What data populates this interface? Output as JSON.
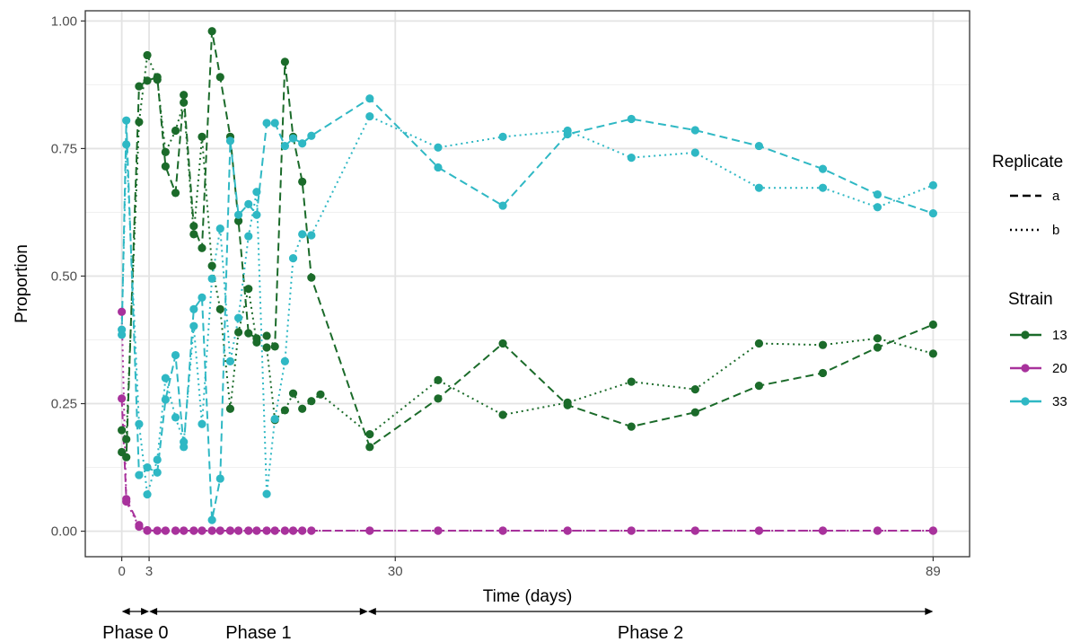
{
  "chart_data": {
    "type": "line",
    "title": "",
    "xlabel": "Time (days)",
    "ylabel": "Proportion",
    "xlim": [
      -4,
      93
    ],
    "ylim": [
      -0.05,
      1.02
    ],
    "x_ticks": [
      0,
      3,
      30,
      89
    ],
    "y_ticks": [
      0.0,
      0.25,
      0.5,
      0.75,
      1.0
    ],
    "y_tick_labels": [
      "0.00",
      "0.25",
      "0.50",
      "0.75",
      "1.00"
    ],
    "grid": true,
    "legend_placement": "right",
    "legend": {
      "replicate_title": "Replicate",
      "replicate_items": [
        {
          "label": "a",
          "linetype": "dashed"
        },
        {
          "label": "b",
          "linetype": "dotted"
        }
      ],
      "strain_title": "Strain",
      "strain_items": [
        {
          "label": "13",
          "color": "#1b6b2a"
        },
        {
          "label": "20",
          "color": "#a8329c"
        },
        {
          "label": "33",
          "color": "#2fb8c4"
        }
      ]
    },
    "phases": [
      {
        "label": "Phase 0",
        "start": 0,
        "end": 3
      },
      {
        "label": "Phase 1",
        "start": 3,
        "end": 27
      },
      {
        "label": "Phase 2",
        "start": 27,
        "end": 89
      }
    ],
    "series": [
      {
        "strain": "13",
        "replicate": "a",
        "color": "#1b6b2a",
        "dash": "dashed",
        "x": [
          0,
          0.5,
          1.9,
          2.8,
          3.9,
          4.8,
          5.9,
          6.8,
          7.9,
          8.8,
          9.9,
          10.8,
          11.9,
          12.8,
          13.9,
          14.8,
          15.9,
          16.8,
          17.9,
          18.8,
          19.8,
          20.8,
          27.2,
          34.7,
          41.8,
          48.9,
          55.9,
          62.9,
          69.9,
          76.9,
          82.9,
          89
        ],
        "y": [
          0.155,
          0.145,
          0.872,
          0.883,
          0.89,
          0.715,
          0.663,
          0.855,
          0.598,
          0.555,
          0.98,
          0.89,
          0.773,
          0.608,
          0.388,
          0.378,
          0.383,
          0.362,
          0.92,
          0.773,
          0.685,
          0.497,
          0.165,
          0.26,
          0.368,
          0.247,
          0.205,
          0.233,
          0.285,
          0.31,
          0.36,
          0.405
        ]
      },
      {
        "strain": "13",
        "replicate": "b",
        "color": "#1b6b2a",
        "dash": "dotted",
        "x": [
          0,
          0.5,
          1.9,
          2.8,
          3.9,
          4.8,
          5.9,
          6.8,
          7.9,
          8.8,
          9.9,
          10.8,
          11.9,
          12.8,
          13.9,
          14.8,
          15.9,
          16.8,
          17.9,
          18.8,
          19.8,
          20.8,
          21.8,
          27.2,
          34.7,
          41.8,
          48.9,
          55.9,
          62.9,
          69.9,
          76.9,
          82.9,
          89
        ],
        "y": [
          0.198,
          0.18,
          0.802,
          0.933,
          0.885,
          0.743,
          0.785,
          0.84,
          0.582,
          0.773,
          0.52,
          0.435,
          0.24,
          0.39,
          0.475,
          0.37,
          0.36,
          0.218,
          0.237,
          0.27,
          0.24,
          0.255,
          0.268,
          0.19,
          0.296,
          0.228,
          0.252,
          0.293,
          0.278,
          0.368,
          0.365,
          0.378,
          0.348
        ]
      },
      {
        "strain": "20",
        "replicate": "a",
        "color": "#a8329c",
        "dash": "dashed",
        "x": [
          0,
          0.5,
          1.9,
          2.8,
          3.9,
          4.8,
          5.9,
          6.8,
          7.9,
          8.8,
          9.9,
          10.8,
          11.9,
          12.8,
          13.9,
          14.8,
          15.9,
          16.8,
          17.9,
          18.8,
          19.8,
          20.8,
          27.2,
          34.7,
          41.8,
          48.9,
          55.9,
          62.9,
          69.9,
          76.9,
          82.9,
          89
        ],
        "y": [
          0.26,
          0.063,
          0.012,
          0.002,
          0.001,
          0.001,
          0.001,
          0.001,
          0.001,
          0.001,
          0.001,
          0.001,
          0.001,
          0.001,
          0.001,
          0.001,
          0.001,
          0.001,
          0.001,
          0.001,
          0.001,
          0.001,
          0.001,
          0.001,
          0.001,
          0.001,
          0.001,
          0.001,
          0.001,
          0.001,
          0.001,
          0.001
        ]
      },
      {
        "strain": "20",
        "replicate": "b",
        "color": "#a8329c",
        "dash": "dotted",
        "x": [
          0,
          0.5,
          1.9,
          2.8,
          3.9,
          4.8,
          5.9,
          6.8,
          7.9,
          8.8,
          9.9,
          10.8,
          11.9,
          12.8,
          13.9,
          14.8,
          15.9,
          16.8,
          17.9,
          18.8,
          19.8,
          20.8,
          27.2,
          34.7,
          41.8,
          48.9,
          55.9,
          62.9,
          69.9,
          76.9,
          82.9,
          89
        ],
        "y": [
          0.43,
          0.058,
          0.009,
          0.001,
          0.001,
          0.001,
          0.001,
          0.001,
          0.001,
          0.001,
          0.001,
          0.001,
          0.001,
          0.001,
          0.001,
          0.001,
          0.001,
          0.001,
          0.001,
          0.001,
          0.001,
          0.001,
          0.001,
          0.001,
          0.001,
          0.001,
          0.001,
          0.001,
          0.001,
          0.001,
          0.001,
          0.001
        ]
      },
      {
        "strain": "33",
        "replicate": "a",
        "color": "#2fb8c4",
        "dash": "dashed",
        "x": [
          0,
          0.5,
          1.9,
          2.8,
          3.9,
          4.8,
          5.9,
          6.8,
          7.9,
          8.8,
          9.9,
          10.8,
          11.9,
          12.8,
          13.9,
          14.8,
          15.9,
          16.8,
          17.9,
          18.8,
          19.8,
          20.8,
          27.2,
          34.7,
          41.8,
          48.9,
          55.9,
          62.9,
          69.9,
          76.9,
          82.9,
          89
        ],
        "y": [
          0.385,
          0.805,
          0.11,
          0.125,
          0.115,
          0.258,
          0.345,
          0.165,
          0.435,
          0.458,
          0.022,
          0.103,
          0.765,
          0.62,
          0.641,
          0.62,
          0.8,
          0.8,
          0.755,
          0.77,
          0.76,
          0.775,
          0.848,
          0.713,
          0.638,
          0.778,
          0.808,
          0.786,
          0.755,
          0.71,
          0.66,
          0.623
        ]
      },
      {
        "strain": "33",
        "replicate": "b",
        "color": "#2fb8c4",
        "dash": "dotted",
        "x": [
          0,
          0.5,
          1.9,
          2.8,
          3.9,
          4.8,
          5.9,
          6.8,
          7.9,
          8.8,
          9.9,
          10.8,
          11.9,
          12.8,
          13.9,
          14.8,
          15.9,
          16.8,
          17.9,
          18.8,
          19.8,
          20.8,
          27.2,
          34.7,
          41.8,
          48.9,
          55.9,
          62.9,
          69.9,
          76.9,
          82.9,
          89
        ],
        "y": [
          0.395,
          0.758,
          0.21,
          0.072,
          0.14,
          0.3,
          0.223,
          0.175,
          0.402,
          0.21,
          0.495,
          0.593,
          0.333,
          0.418,
          0.578,
          0.665,
          0.073,
          0.22,
          0.333,
          0.535,
          0.582,
          0.58,
          0.813,
          0.752,
          0.773,
          0.785,
          0.732,
          0.742,
          0.673,
          0.673,
          0.635,
          0.678
        ]
      }
    ]
  }
}
